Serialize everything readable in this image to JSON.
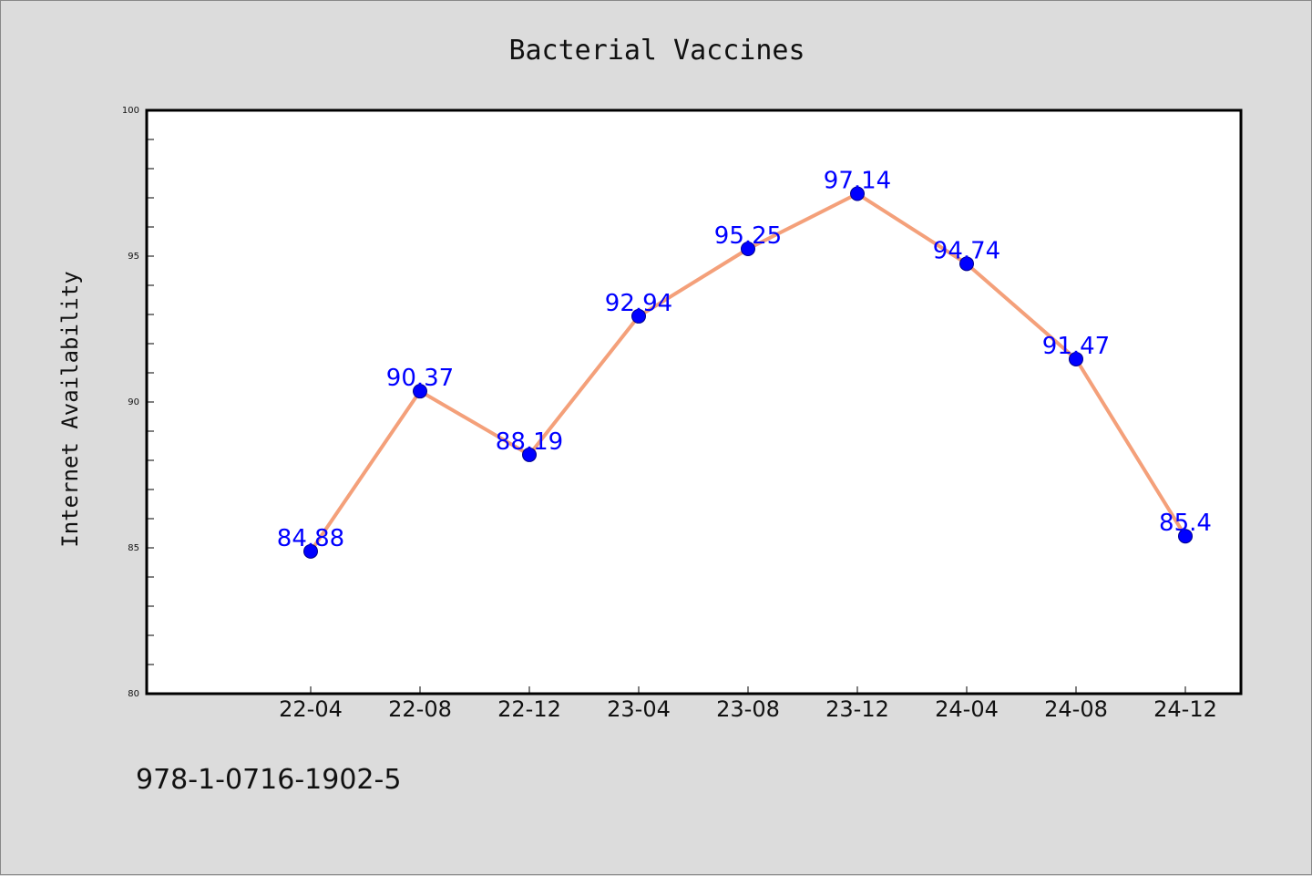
{
  "chart_data": {
    "type": "line",
    "title": "Bacterial Vaccines",
    "xlabel": "",
    "ylabel": "Internet Availability",
    "categories": [
      "22-04",
      "22-08",
      "22-12",
      "23-04",
      "23-08",
      "23-12",
      "24-04",
      "24-08",
      "24-12"
    ],
    "series": [
      {
        "values": [
          84.88,
          90.37,
          88.19,
          92.94,
          95.25,
          97.14,
          94.74,
          91.47,
          85.4
        ],
        "labels": [
          "84.88",
          "90.37",
          "88.19",
          "92.94",
          "95.25",
          "97.14",
          "94.74",
          "91.47",
          "85.4"
        ]
      }
    ],
    "ylim": [
      80,
      100
    ],
    "yticks": [
      80,
      85,
      90,
      95,
      100
    ],
    "ytick_labels": [
      "80",
      "85",
      "90",
      "95",
      "100"
    ],
    "grid": false,
    "legend": "none",
    "colors": {
      "line": "#f4a07a",
      "marker": "#0000ff",
      "data_label": "#0000ff",
      "background": "#dcdcdc",
      "plot_background": "#ffffff"
    }
  },
  "footer": {
    "isbn": "978-1-0716-1902-5"
  }
}
